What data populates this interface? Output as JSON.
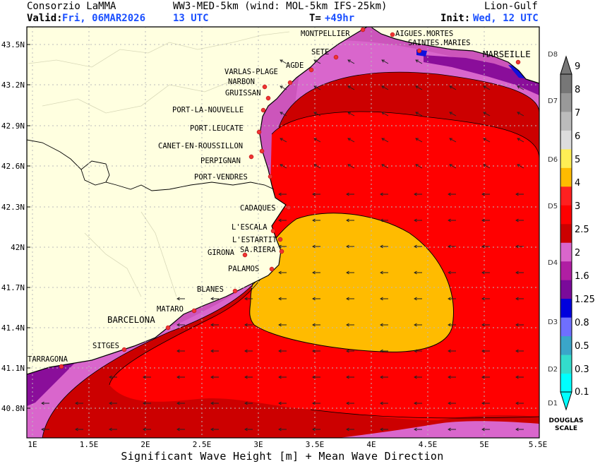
{
  "header": {
    "org": "Consorzio LaMMA",
    "model": "WW3-MED-5km (wind: MOL-5km IFS-25km)",
    "area": "Lion-Gulf",
    "valid_label": "Valid:",
    "valid_date": "Fri, 06MAR2026",
    "valid_hour": "13 UTC",
    "t_label": "T=",
    "t_value": "+49hr",
    "init_label": "Init:",
    "init_value": "Wed, 12 UTC"
  },
  "footer_title": "Significant Wave Height [m] + Mean Wave Direction",
  "axes": {
    "lat_ticks": [
      "43.5N",
      "43.2N",
      "42.9N",
      "42.6N",
      "42.3N",
      "42N",
      "41.7N",
      "41.4N",
      "41.1N",
      "40.8N"
    ],
    "lon_ticks": [
      "1E",
      "1.5E",
      "2E",
      "2.5E",
      "3E",
      "3.5E",
      "4E",
      "4.5E",
      "5E",
      "5.5E"
    ]
  },
  "cities": [
    "MONTPELLIER",
    "AIGUES.MORTES",
    "SAINTES.MARIES",
    "MARSEILLE",
    "SETE",
    "AGDE",
    "VARLAS-PLAGE",
    "NARBON",
    "GRUISSAN",
    "PORT-LA-NOUVELLE",
    "PORT.LEUCATE",
    "CANET-EN-ROUSSILLON",
    "PERPIGNAN",
    "PORT-VENDRES",
    "CADAQUES",
    "L'ESCALA",
    "L'ESTARTIT",
    "SA.RIERA",
    "GIRONA",
    "PALAMOS",
    "BLANES",
    "MATARO",
    "BARCELONA",
    "SITGES",
    "TARRAGONA"
  ],
  "colorbar": {
    "levels": [
      "0.1",
      "0.3",
      "0.5",
      "0.8",
      "1.25",
      "1.6",
      "2",
      "2.5",
      "3",
      "4",
      "5",
      "6",
      "7",
      "8",
      "9"
    ],
    "douglas": [
      "D1",
      "D2",
      "D3",
      "D4",
      "D5",
      "D6",
      "D7",
      "D8"
    ],
    "scale_label_1": "DOUGLAS",
    "scale_label_2": "SCALE",
    "colors": [
      "#00ffff",
      "#33ddcc",
      "#3aa6c9",
      "#6f6fff",
      "#0000dd",
      "#7a0a9a",
      "#b01ea3",
      "#d966cc",
      "#cc0000",
      "#ff0000",
      "#ff2020",
      "#ffbb00",
      "#ffee55",
      "#dddddd",
      "#bbbbbb",
      "#999999",
      "#777777"
    ]
  }
}
